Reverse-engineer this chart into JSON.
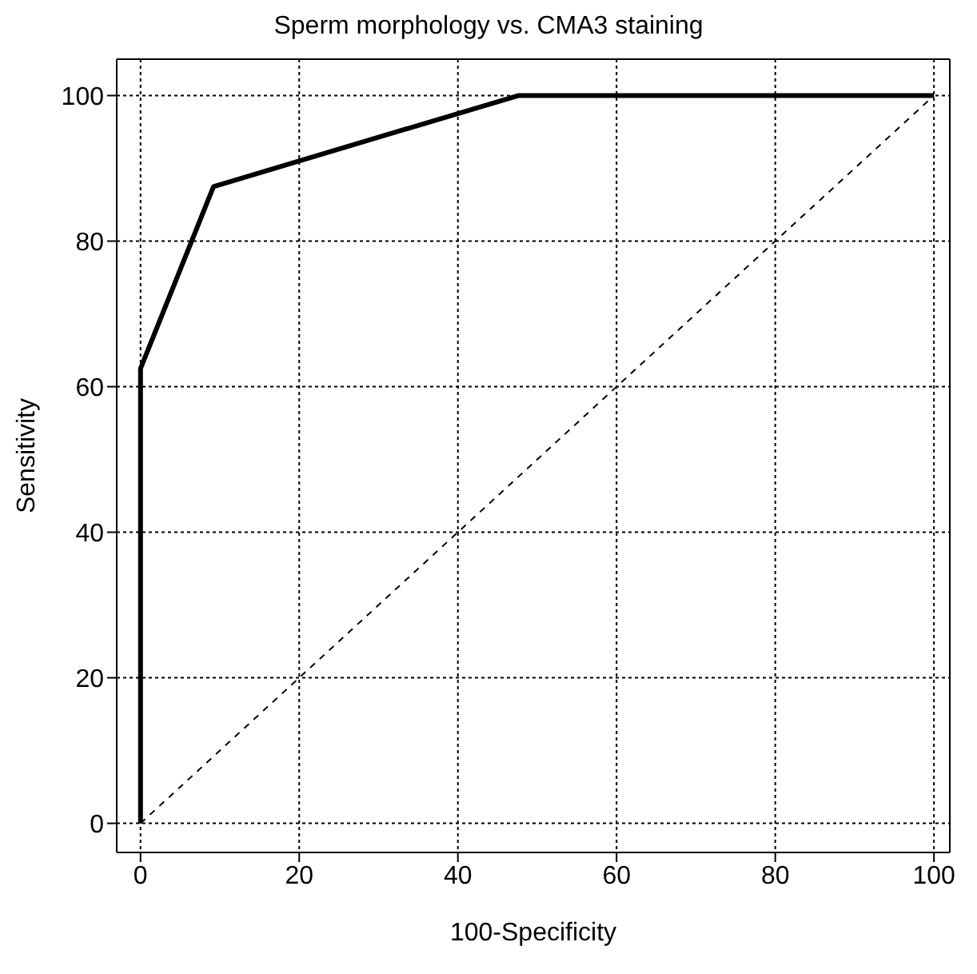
{
  "chart_data": {
    "type": "line",
    "title": "Sperm morphology vs. CMA3 staining",
    "xlabel": "100-Specificity",
    "ylabel": "Sensitivity",
    "xlim": [
      -3,
      102
    ],
    "ylim": [
      -4,
      105
    ],
    "xticks": [
      0,
      20,
      40,
      60,
      80,
      100
    ],
    "yticks": [
      0,
      20,
      40,
      60,
      80,
      100
    ],
    "grid": true,
    "marker": "none",
    "series": [
      {
        "color": "#000000",
        "line_style": "solid",
        "x": [
          0,
          0,
          9.2,
          47.6,
          100
        ],
        "values": [
          0,
          62.5,
          87.5,
          100,
          100
        ]
      },
      {
        "color": "#000000",
        "line_style": "dashed",
        "x": [
          0,
          100
        ],
        "values": [
          0,
          100
        ]
      }
    ]
  }
}
